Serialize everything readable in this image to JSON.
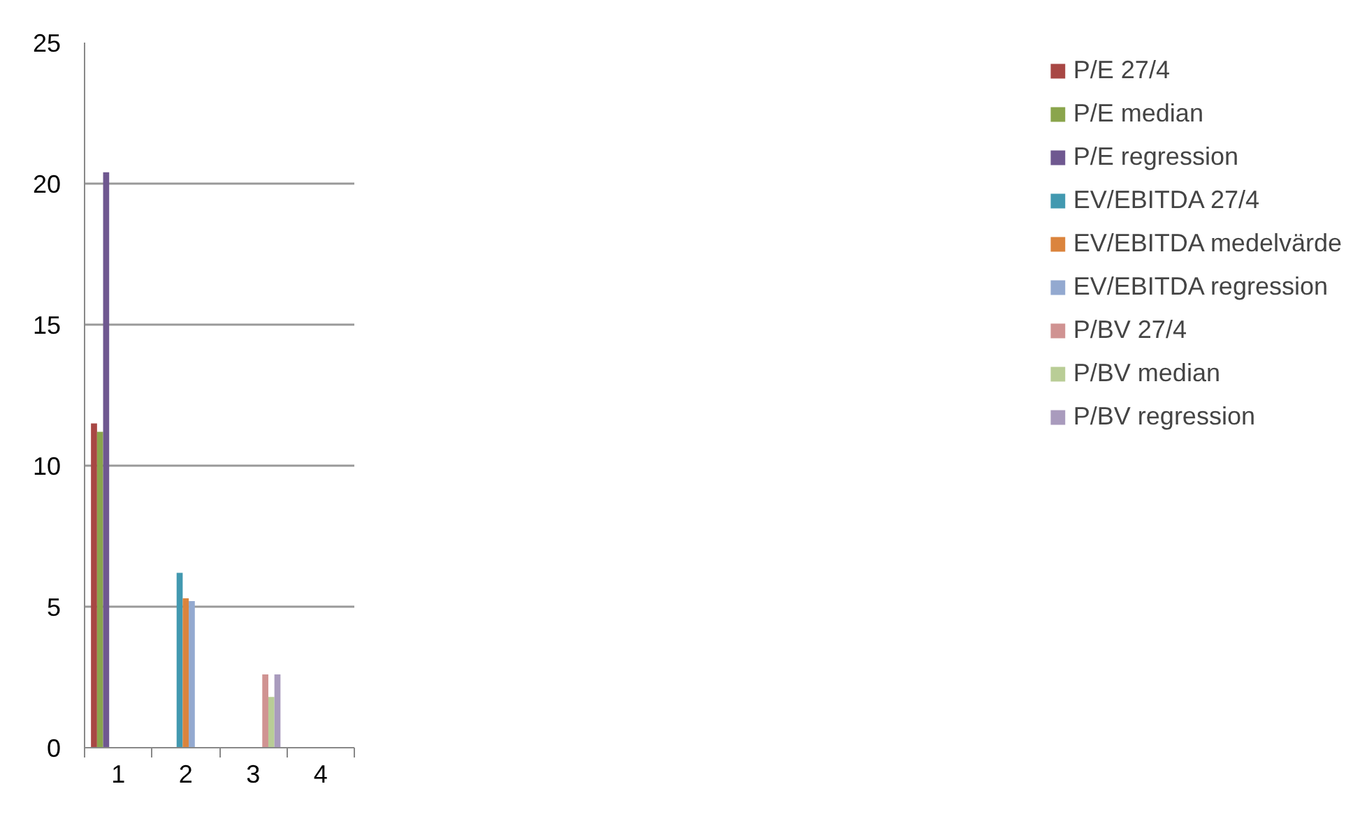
{
  "chart_data": {
    "type": "bar",
    "categories": [
      "1",
      "2",
      "3",
      "4"
    ],
    "series": [
      {
        "name": "P/E 27/4",
        "color": "#a84744",
        "values": [
          11.5,
          null,
          null,
          null
        ]
      },
      {
        "name": "P/E median",
        "color": "#8aa54c",
        "values": [
          11.2,
          null,
          null,
          null
        ]
      },
      {
        "name": "P/E regression",
        "color": "#6f5890",
        "values": [
          20.4,
          null,
          null,
          null
        ]
      },
      {
        "name": "EV/EBITDA 27/4",
        "color": "#4299b0",
        "values": [
          null,
          6.2,
          null,
          null
        ]
      },
      {
        "name": "EV/EBITDA medelvärde",
        "color": "#db843d",
        "values": [
          null,
          5.3,
          null,
          null
        ]
      },
      {
        "name": "EV/EBITDA regression",
        "color": "#93a9d0",
        "values": [
          null,
          5.2,
          null,
          null
        ]
      },
      {
        "name": "P/BV 27/4",
        "color": "#d09392",
        "values": [
          null,
          null,
          2.6,
          null
        ]
      },
      {
        "name": "P/BV median",
        "color": "#b9cd96",
        "values": [
          null,
          null,
          1.8,
          null
        ]
      },
      {
        "name": "P/BV regression",
        "color": "#a99bbd",
        "values": [
          null,
          null,
          2.6,
          null
        ]
      }
    ],
    "ylim": [
      0,
      25
    ],
    "yticks": [
      0,
      5,
      10,
      15,
      20,
      25
    ],
    "grid": "y",
    "legend": "right"
  }
}
